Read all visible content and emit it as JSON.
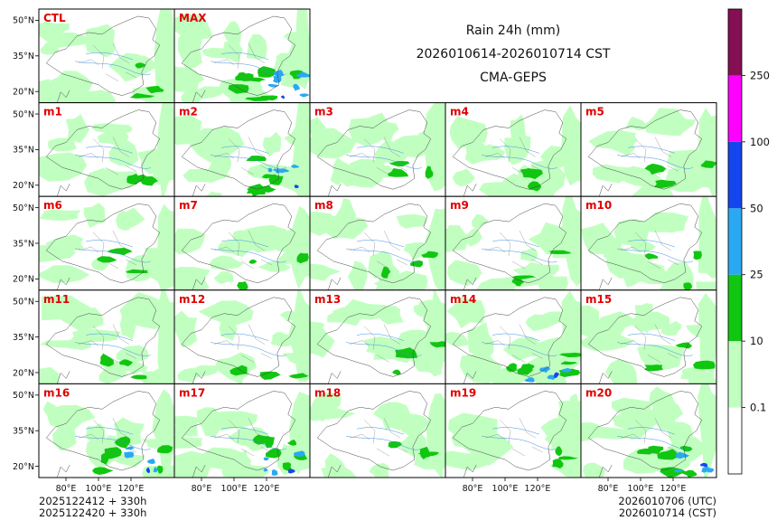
{
  "title": {
    "line1": "Rain 24h (mm)",
    "line2": "2026010614-2026010714 CST",
    "line3": "CMA-GEPS"
  },
  "panels": [
    "CTL",
    "MAX",
    "m1",
    "m2",
    "m3",
    "m4",
    "m5",
    "m6",
    "m7",
    "m8",
    "m9",
    "m10",
    "m11",
    "m12",
    "m13",
    "m14",
    "m15",
    "m16",
    "m17",
    "m18",
    "m19",
    "m20"
  ],
  "axes": {
    "lat_ticks": [
      "50°N",
      "35°N",
      "20°N"
    ],
    "lon_ticks": [
      "80°E",
      "100°E",
      "120°E"
    ]
  },
  "colorbar": {
    "levels": [
      "0.1",
      "10",
      "25",
      "50",
      "100",
      "250"
    ],
    "colors": [
      "#ffffff",
      "#c1ffc1",
      "#11c611",
      "#2aa9f2",
      "#1446ef",
      "#ff00ff",
      "#850f53"
    ]
  },
  "footer": {
    "left_line1": "2025122412 + 330h",
    "left_line2": "2025122420 + 330h",
    "right_line1": "2026010706 (UTC)",
    "right_line2": "2026010714 (CST)"
  }
}
